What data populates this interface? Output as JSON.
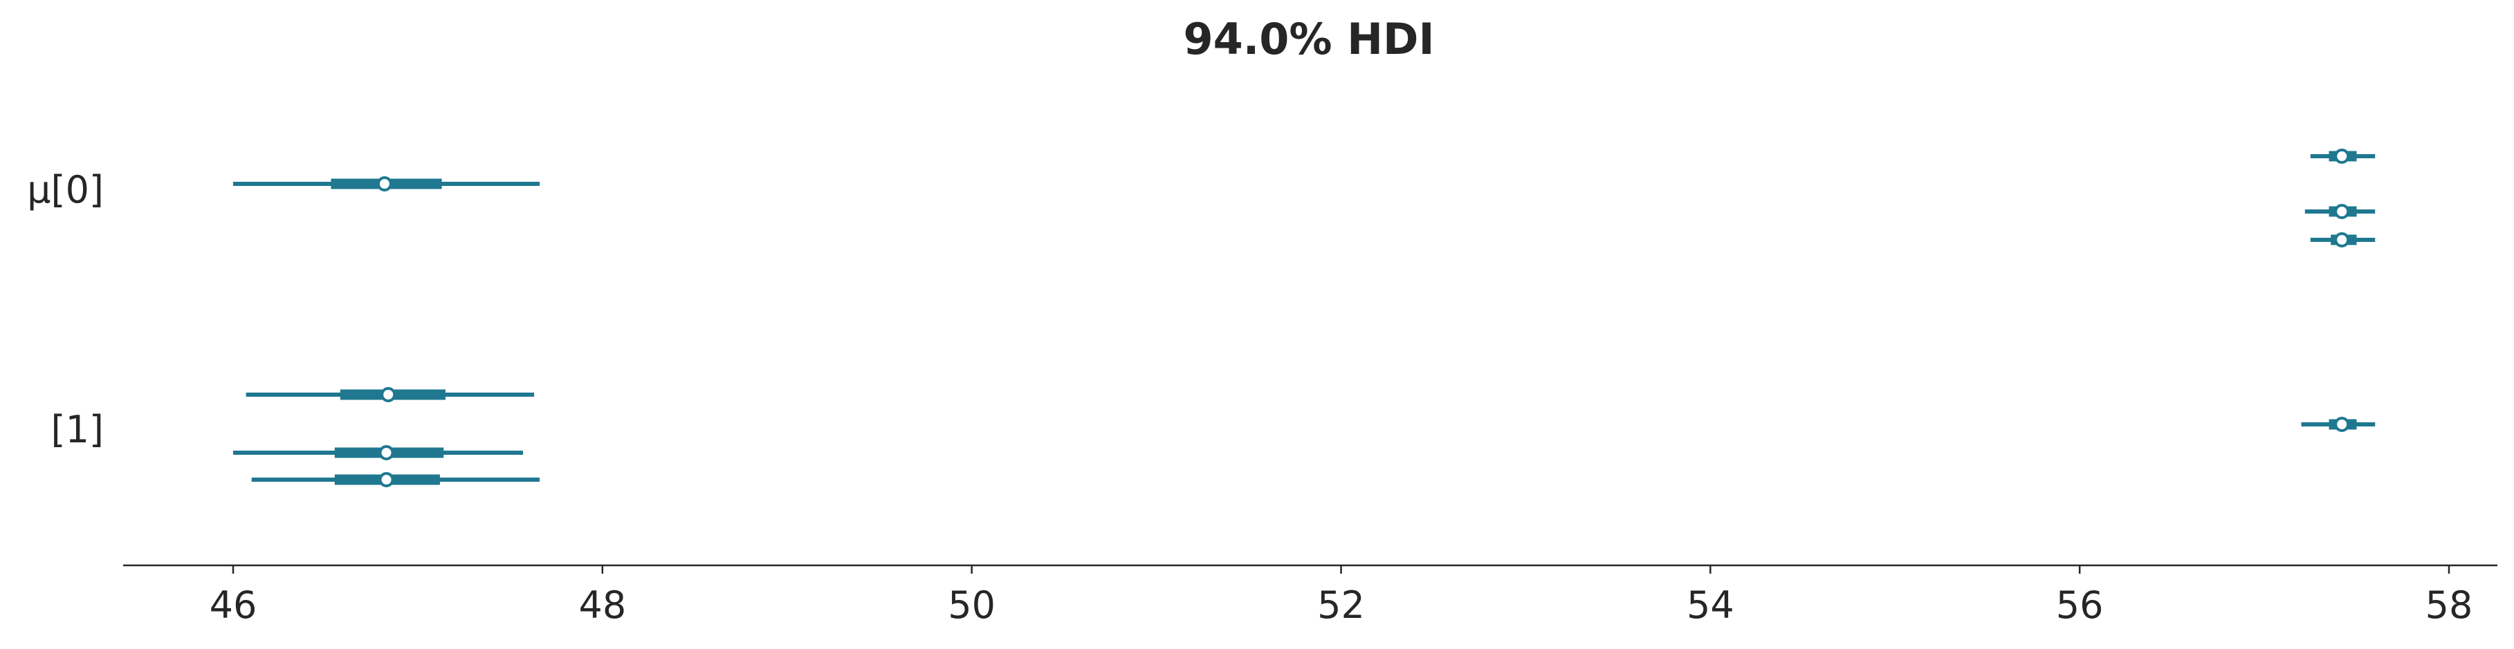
{
  "chart_data": {
    "type": "forest",
    "title": "94.0% HDI",
    "xlabel": "",
    "ylabel": "",
    "xlim": [
      45.4,
      58.25
    ],
    "xticks": [
      46,
      48,
      50,
      52,
      54,
      56,
      58
    ],
    "xtick_labels": [
      "46",
      "48",
      "50",
      "52",
      "54",
      "56",
      "58"
    ],
    "grid": false,
    "color": "#1f7890",
    "groups": [
      {
        "label": "μ[0]",
        "chains": [
          {
            "median": 57.42,
            "iqr": [
              57.35,
              57.5
            ],
            "hdi": [
              57.25,
              57.6
            ]
          },
          {
            "median": 57.42,
            "iqr": [
              57.35,
              57.5
            ],
            "hdi": [
              57.22,
              57.6
            ]
          },
          {
            "median": 57.42,
            "iqr": [
              57.36,
              57.5
            ],
            "hdi": [
              57.25,
              57.6
            ]
          },
          {
            "median": 46.82,
            "iqr": [
              46.53,
              47.13
            ],
            "hdi": [
              46.0,
              47.66
            ]
          }
        ]
      },
      {
        "label": "[1]",
        "chains": [
          {
            "median": 57.42,
            "iqr": [
              57.35,
              57.5
            ],
            "hdi": [
              57.2,
              57.6
            ]
          },
          {
            "median": 46.84,
            "iqr": [
              46.58,
              47.15
            ],
            "hdi": [
              46.07,
              47.63
            ]
          },
          {
            "median": 46.83,
            "iqr": [
              46.55,
              47.14
            ],
            "hdi": [
              46.0,
              47.57
            ]
          },
          {
            "median": 46.83,
            "iqr": [
              46.55,
              47.12
            ],
            "hdi": [
              46.1,
              47.66
            ]
          }
        ]
      }
    ]
  }
}
